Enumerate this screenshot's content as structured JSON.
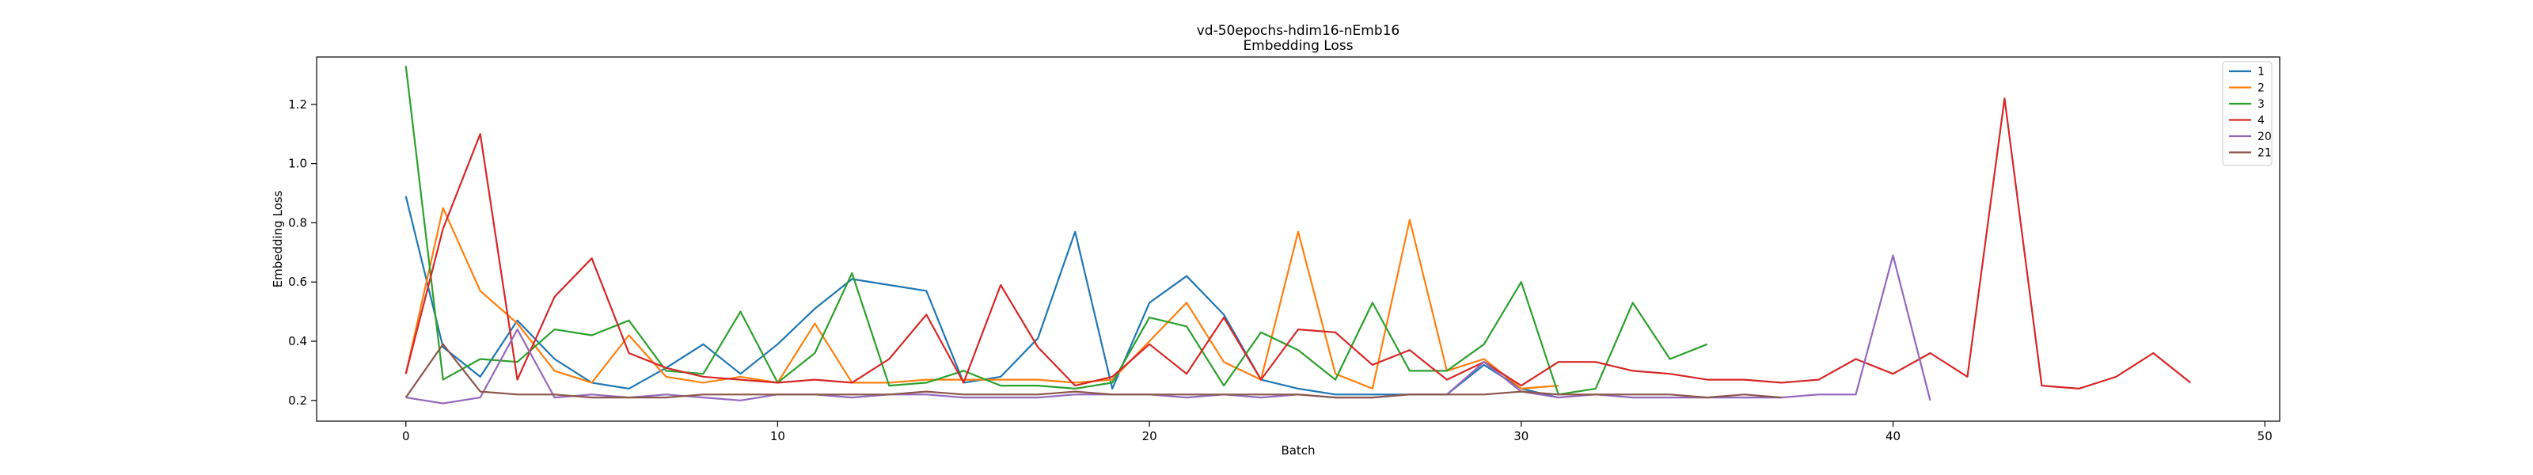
{
  "chart_data": {
    "type": "line",
    "title": "vd-50epochs-hdim16-nEmb16",
    "subtitle": "Embedding Loss",
    "xlabel": "Batch",
    "ylabel": "Embedding Loss",
    "xlim": [
      -2.4,
      50.4
    ],
    "ylim": [
      0.13,
      1.36
    ],
    "xticks": [
      0,
      10,
      20,
      30,
      40,
      50
    ],
    "yticks": [
      0.2,
      0.4,
      0.6,
      0.8,
      1.0,
      1.2
    ],
    "xtick_labels": [
      "0",
      "10",
      "20",
      "30",
      "40",
      "50"
    ],
    "ytick_labels": [
      "0.2",
      "0.4",
      "0.6",
      "0.8",
      "1.0",
      "1.2"
    ],
    "grid": false,
    "legend_position": "top-right",
    "series": [
      {
        "name": "1",
        "color": "#1f77b4",
        "x": [
          0,
          1,
          2,
          3,
          4,
          5,
          6,
          7,
          8,
          9,
          10,
          11,
          12,
          13,
          14,
          15,
          16,
          17,
          18,
          19,
          20,
          21,
          22,
          23,
          24,
          25,
          26,
          27,
          28,
          29,
          30,
          31
        ],
        "y": [
          0.89,
          0.38,
          0.28,
          0.47,
          0.34,
          0.26,
          0.24,
          0.31,
          0.39,
          0.29,
          0.39,
          0.51,
          0.61,
          0.59,
          0.57,
          0.26,
          0.28,
          0.41,
          0.77,
          0.24,
          0.53,
          0.62,
          0.49,
          0.27,
          0.24,
          0.22,
          0.22,
          0.22,
          0.22,
          0.32,
          0.24,
          0.21
        ]
      },
      {
        "name": "2",
        "color": "#ff7f0e",
        "x": [
          0,
          1,
          2,
          3,
          4,
          5,
          6,
          7,
          8,
          9,
          10,
          11,
          12,
          13,
          14,
          15,
          16,
          17,
          18,
          19,
          20,
          21,
          22,
          23,
          24,
          25,
          26,
          27,
          28,
          29,
          30,
          31
        ],
        "y": [
          0.29,
          0.85,
          0.57,
          0.46,
          0.3,
          0.26,
          0.42,
          0.28,
          0.26,
          0.28,
          0.26,
          0.46,
          0.26,
          0.26,
          0.27,
          0.27,
          0.27,
          0.27,
          0.26,
          0.27,
          0.4,
          0.53,
          0.33,
          0.27,
          0.77,
          0.29,
          0.24,
          0.81,
          0.3,
          0.34,
          0.24,
          0.25
        ]
      },
      {
        "name": "3",
        "color": "#2ca02c",
        "x": [
          0,
          1,
          2,
          3,
          4,
          5,
          6,
          7,
          8,
          9,
          10,
          11,
          12,
          13,
          14,
          15,
          16,
          17,
          18,
          19,
          20,
          21,
          22,
          23,
          24,
          25,
          26,
          27,
          28,
          29,
          30,
          31,
          32,
          33,
          34,
          35
        ],
        "y": [
          1.33,
          0.27,
          0.34,
          0.33,
          0.44,
          0.42,
          0.47,
          0.3,
          0.29,
          0.5,
          0.26,
          0.36,
          0.63,
          0.25,
          0.26,
          0.3,
          0.25,
          0.25,
          0.24,
          0.26,
          0.48,
          0.45,
          0.25,
          0.43,
          0.37,
          0.27,
          0.53,
          0.3,
          0.3,
          0.39,
          0.6,
          0.22,
          0.24,
          0.53,
          0.34,
          0.39
        ]
      },
      {
        "name": "4",
        "color": "#d62728",
        "x": [
          0,
          1,
          2,
          3,
          4,
          5,
          6,
          7,
          8,
          9,
          10,
          11,
          12,
          13,
          14,
          15,
          16,
          17,
          18,
          19,
          20,
          21,
          22,
          23,
          24,
          25,
          26,
          27,
          28,
          29,
          30,
          31,
          32,
          33,
          34,
          35,
          36,
          37,
          38,
          39,
          40,
          41,
          42,
          43,
          44,
          45,
          46,
          47,
          48
        ],
        "y": [
          0.29,
          0.78,
          1.1,
          0.27,
          0.55,
          0.68,
          0.36,
          0.31,
          0.28,
          0.27,
          0.26,
          0.27,
          0.26,
          0.34,
          0.49,
          0.26,
          0.59,
          0.38,
          0.25,
          0.28,
          0.39,
          0.29,
          0.48,
          0.27,
          0.44,
          0.43,
          0.32,
          0.37,
          0.27,
          0.33,
          0.25,
          0.33,
          0.33,
          0.3,
          0.29,
          0.27,
          0.27,
          0.26,
          0.27,
          0.34,
          0.29,
          0.36,
          0.28,
          1.22,
          0.25,
          0.24,
          0.28,
          0.36,
          0.26
        ]
      },
      {
        "name": "20",
        "color": "#9467bd",
        "x": [
          0,
          1,
          2,
          3,
          4,
          5,
          6,
          7,
          8,
          9,
          10,
          11,
          12,
          13,
          14,
          15,
          16,
          17,
          18,
          19,
          20,
          21,
          22,
          23,
          24,
          25,
          26,
          27,
          28,
          29,
          30,
          31,
          32,
          33,
          34,
          35,
          36,
          37,
          38,
          39,
          40,
          41
        ],
        "y": [
          0.21,
          0.19,
          0.21,
          0.44,
          0.21,
          0.22,
          0.21,
          0.22,
          0.21,
          0.2,
          0.22,
          0.22,
          0.21,
          0.22,
          0.22,
          0.21,
          0.21,
          0.21,
          0.22,
          0.22,
          0.22,
          0.21,
          0.22,
          0.21,
          0.22,
          0.21,
          0.21,
          0.22,
          0.22,
          0.33,
          0.23,
          0.21,
          0.22,
          0.21,
          0.21,
          0.21,
          0.21,
          0.21,
          0.22,
          0.22,
          0.69,
          0.2
        ]
      },
      {
        "name": "21",
        "color": "#8c564b",
        "x": [
          0,
          1,
          2,
          3,
          4,
          5,
          6,
          7,
          8,
          9,
          10,
          11,
          12,
          13,
          14,
          15,
          16,
          17,
          18,
          19,
          20,
          21,
          22,
          23,
          24,
          25,
          26,
          27,
          28,
          29,
          30,
          31,
          32,
          33,
          34,
          35,
          36,
          37
        ],
        "y": [
          0.21,
          0.39,
          0.23,
          0.22,
          0.22,
          0.21,
          0.21,
          0.21,
          0.22,
          0.22,
          0.22,
          0.22,
          0.22,
          0.22,
          0.23,
          0.22,
          0.22,
          0.22,
          0.23,
          0.22,
          0.22,
          0.22,
          0.22,
          0.22,
          0.22,
          0.21,
          0.21,
          0.22,
          0.22,
          0.22,
          0.23,
          0.22,
          0.22,
          0.22,
          0.22,
          0.21,
          0.22,
          0.21
        ]
      }
    ]
  }
}
